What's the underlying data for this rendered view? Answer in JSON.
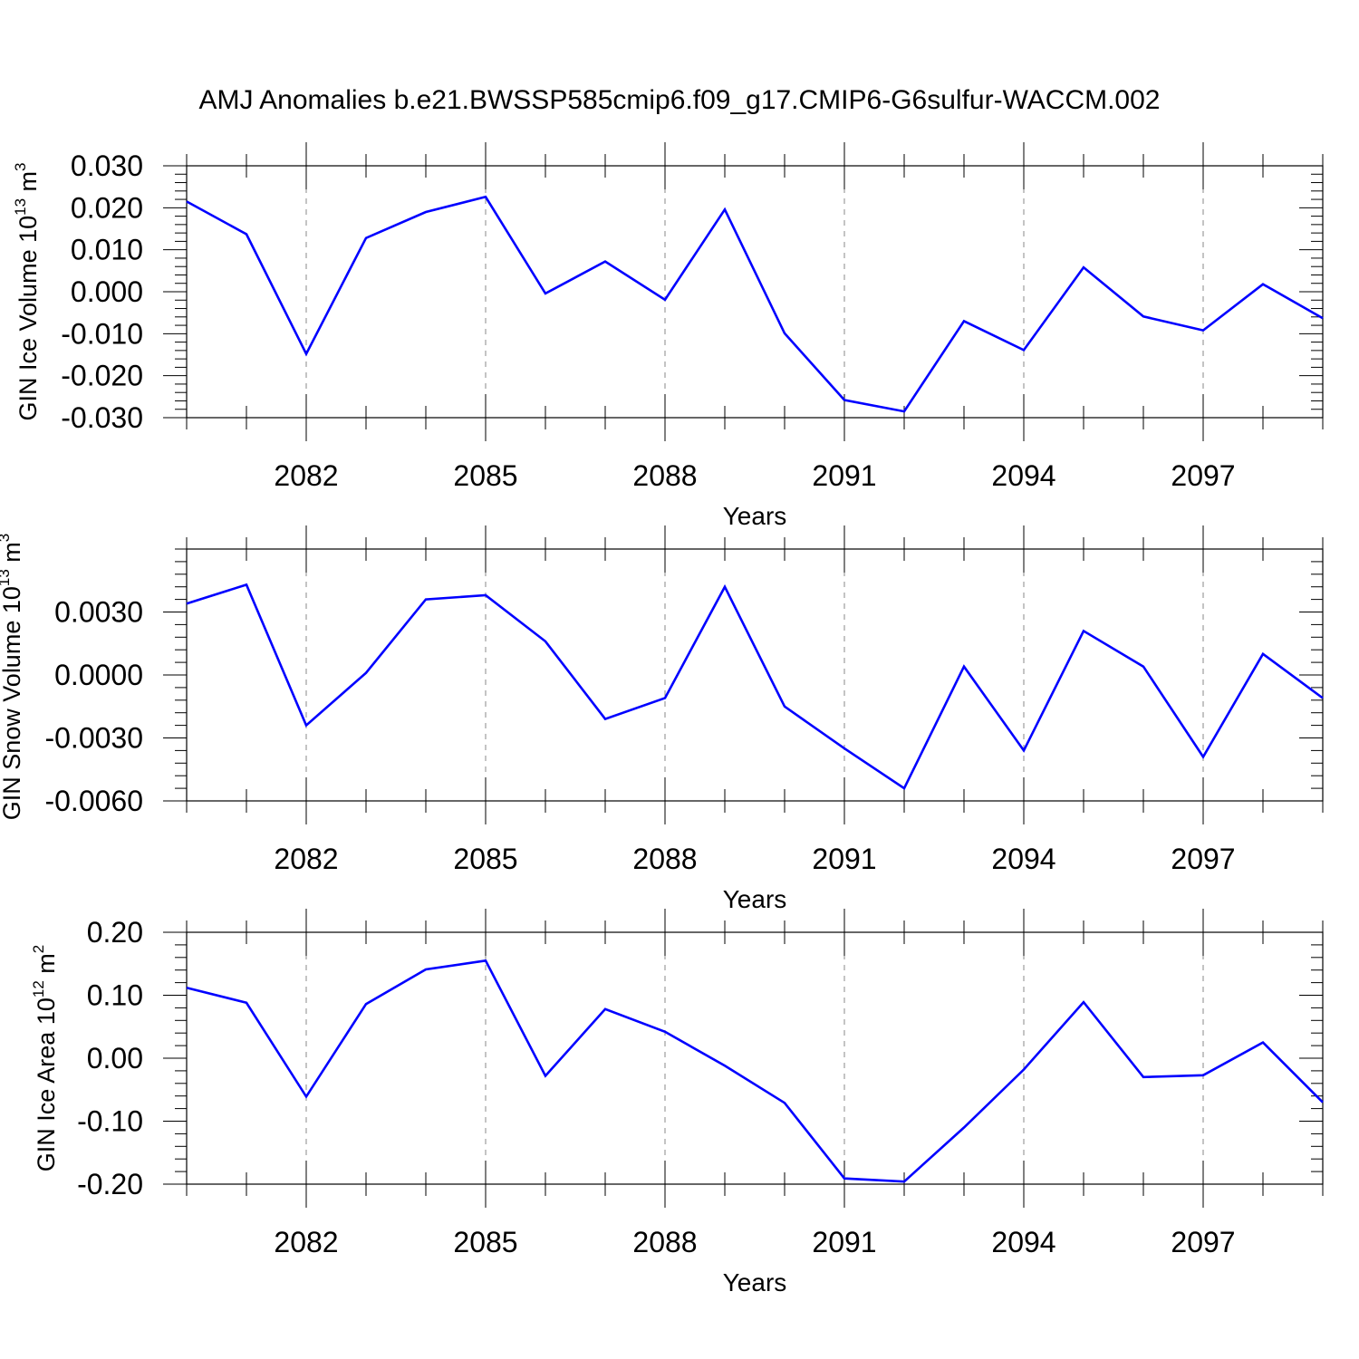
{
  "figure": {
    "title": "AMJ Anomalies b.e21.BWSSP585cmip6.f09_g17.CMIP6-G6sulfur-WACCM.002",
    "line_color": "#0000ff"
  },
  "chart_data": [
    {
      "type": "line",
      "xlabel": "Years",
      "ylabel": "GIN Ice Volume 10",
      "ylabel_exp": "13",
      "ylabel_unit": " m",
      "ylabel_unit_exp": "3",
      "xlim": [
        2080,
        2099
      ],
      "ylim": [
        -0.03,
        0.03
      ],
      "x_ticks": [
        2082,
        2085,
        2088,
        2091,
        2094,
        2097
      ],
      "y_ticks": [
        -0.03,
        -0.02,
        -0.01,
        0.0,
        0.01,
        0.02,
        0.03
      ],
      "y_tick_labels": [
        "-0.030",
        "-0.020",
        "-0.010",
        "0.000",
        "0.010",
        "0.020",
        "0.030"
      ],
      "grid": "vertical dashed at labeled years",
      "x": [
        2080,
        2081,
        2082,
        2083,
        2084,
        2085,
        2086,
        2087,
        2088,
        2089,
        2090,
        2091,
        2092,
        2093,
        2094,
        2095,
        2096,
        2097,
        2098,
        2099
      ],
      "values": [
        0.0215,
        0.0137,
        -0.0148,
        0.0128,
        0.019,
        0.0226,
        -0.0004,
        0.0072,
        -0.0019,
        0.0196,
        -0.0099,
        -0.0258,
        -0.0285,
        -0.007,
        -0.0139,
        0.0058,
        -0.0059,
        -0.0092,
        0.0018,
        -0.0063
      ]
    },
    {
      "type": "line",
      "xlabel": "Years",
      "ylabel": "GIN Snow Volume 10",
      "ylabel_exp": "13",
      "ylabel_unit": " m",
      "ylabel_unit_exp": "3",
      "xlim": [
        2080,
        2099
      ],
      "ylim": [
        -0.006,
        0.006
      ],
      "x_ticks": [
        2082,
        2085,
        2088,
        2091,
        2094,
        2097
      ],
      "y_ticks": [
        -0.006,
        -0.003,
        0.0,
        0.003
      ],
      "y_tick_labels": [
        "-0.0060",
        "-0.0030",
        "0.0000",
        "0.0030"
      ],
      "grid": "vertical dashed at labeled years",
      "x": [
        2080,
        2081,
        2082,
        2083,
        2084,
        2085,
        2086,
        2087,
        2088,
        2089,
        2090,
        2091,
        2092,
        2093,
        2094,
        2095,
        2096,
        2097,
        2098,
        2099
      ],
      "values": [
        0.0034,
        0.0043,
        -0.0024,
        0.0001,
        0.0036,
        0.0038,
        0.0016,
        -0.0021,
        -0.0011,
        0.0042,
        -0.0015,
        -0.0035,
        -0.0054,
        0.0004,
        -0.0036,
        0.0021,
        0.0004,
        -0.0039,
        0.001,
        -0.0011
      ]
    },
    {
      "type": "line",
      "xlabel": "Years",
      "ylabel": "GIN Ice Area 10",
      "ylabel_exp": "12",
      "ylabel_unit": " m",
      "ylabel_unit_exp": "2",
      "xlim": [
        2080,
        2099
      ],
      "ylim": [
        -0.2,
        0.2
      ],
      "x_ticks": [
        2082,
        2085,
        2088,
        2091,
        2094,
        2097
      ],
      "y_ticks": [
        -0.2,
        -0.1,
        0.0,
        0.1,
        0.2
      ],
      "y_tick_labels": [
        "-0.20",
        "-0.10",
        "0.00",
        "0.10",
        "0.20"
      ],
      "grid": "vertical dashed at labeled years",
      "x": [
        2080,
        2081,
        2082,
        2083,
        2084,
        2085,
        2086,
        2087,
        2088,
        2089,
        2090,
        2091,
        2092,
        2093,
        2094,
        2095,
        2096,
        2097,
        2098,
        2099
      ],
      "values": [
        0.112,
        0.088,
        -0.061,
        0.086,
        0.141,
        0.155,
        -0.028,
        0.078,
        0.042,
        -0.012,
        -0.071,
        -0.191,
        -0.196,
        -0.11,
        -0.018,
        0.089,
        -0.03,
        -0.027,
        0.025,
        -0.07
      ]
    }
  ]
}
